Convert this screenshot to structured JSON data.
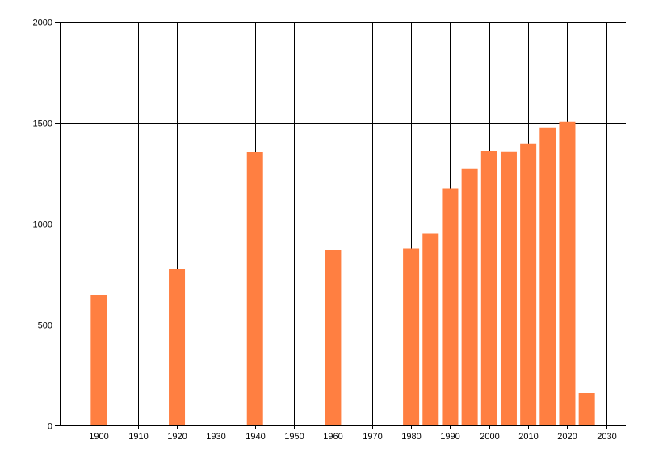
{
  "chart_data": {
    "type": "bar",
    "title": "",
    "xlabel": "",
    "ylabel": "",
    "x": [
      1900,
      1920,
      1940,
      1960,
      1980,
      1985,
      1990,
      1995,
      2000,
      2005,
      2010,
      2015,
      2020,
      2025
    ],
    "values": [
      648,
      776,
      1356,
      868,
      878,
      950,
      1174,
      1273,
      1360,
      1357,
      1397,
      1477,
      1505,
      160
    ],
    "xlim": [
      1890,
      2035
    ],
    "ylim": [
      0,
      2000
    ],
    "xticks": [
      "1900",
      "1910",
      "1920",
      "1930",
      "1940",
      "1950",
      "1960",
      "1970",
      "1980",
      "1990",
      "2000",
      "2010",
      "2020",
      "2030"
    ],
    "yticks": [
      "0",
      "500",
      "1000",
      "1500",
      "2000"
    ],
    "grid": true,
    "bar_color": "#FF7F41",
    "grid_color": "#000000"
  }
}
